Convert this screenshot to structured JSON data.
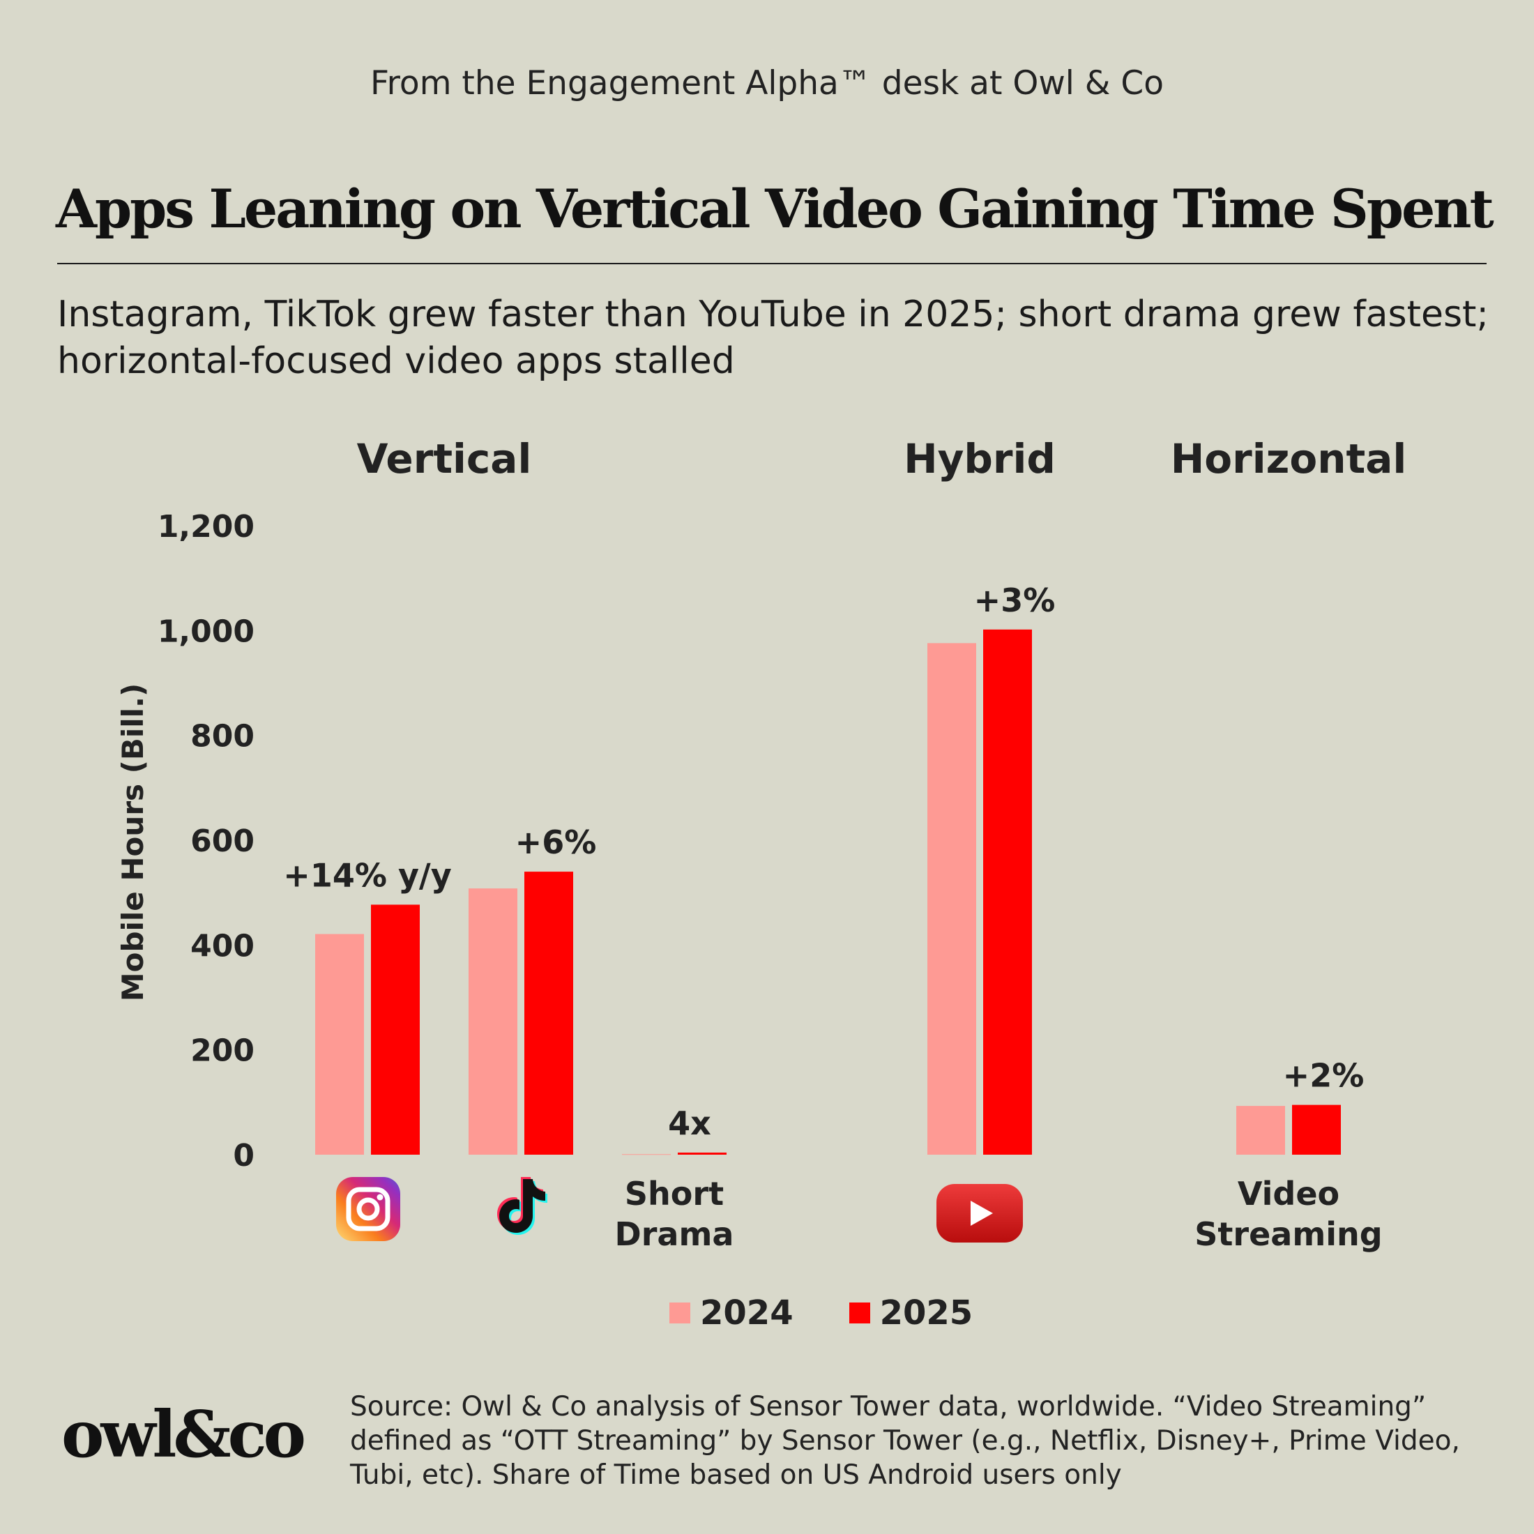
{
  "header": {
    "kicker": "From the Engagement Alpha™ desk at Owl & Co",
    "title": "Apps Leaning on Vertical Video Gaining Time Spent",
    "subtitle": "Instagram, TikTok grew faster than YouTube in 2025; short drama grew fastest; horizontal-focused video apps stalled"
  },
  "groups": [
    "Vertical",
    "Hybrid",
    "Horizontal"
  ],
  "colors": {
    "y2024": "#fe9a94",
    "y2025": "#ff0000",
    "background": "#d9d9cb"
  },
  "chart_data": {
    "type": "bar",
    "ylabel": "Mobile Hours (Bill.)",
    "ylim": [
      0,
      1200
    ],
    "yticks": [
      "1,200",
      "1,000",
      "800",
      "600",
      "400",
      "200",
      "0"
    ],
    "categories": [
      "Instagram",
      "TikTok",
      "Short Drama",
      "YouTube",
      "Video Streaming"
    ],
    "category_labels": [
      "",
      "",
      "Short Drama",
      "",
      "Video Streaming"
    ],
    "category_icons": [
      "instagram-icon",
      "tiktok-icon",
      "",
      "youtube-icon",
      ""
    ],
    "series": [
      {
        "name": "2024",
        "values": [
          421,
          508,
          1,
          976,
          93
        ]
      },
      {
        "name": "2025",
        "values": [
          477,
          540,
          4,
          1002,
          95
        ]
      }
    ],
    "annotations": [
      "+14% y/y",
      "+6%",
      "4x",
      "+3%",
      "+2%"
    ],
    "legend": [
      "2024",
      "2025"
    ],
    "legend_position": "bottom-center",
    "grid": false
  },
  "footer": {
    "logo": "owl&co",
    "source": "Source: Owl & Co analysis of Sensor Tower data, worldwide. “Video Streaming” defined as “OTT Streaming” by Sensor Tower (e.g., Netflix, Disney+, Prime Video, Tubi, etc). Share of Time based on US Android users only"
  }
}
